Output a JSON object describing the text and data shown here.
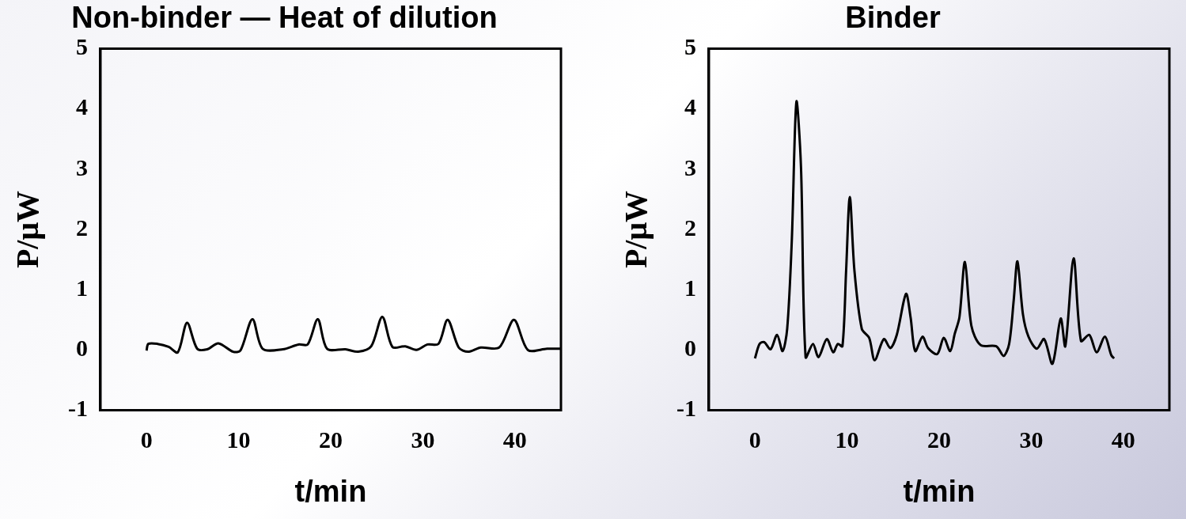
{
  "chart_data": [
    {
      "type": "line",
      "title": "Non-binder — Heat of dilution",
      "xlabel": "t/min",
      "ylabel": "P/μW",
      "color": "#000000",
      "xlim": [
        -5,
        45
      ],
      "ylim": [
        -1,
        5
      ],
      "xticks": [
        0,
        10,
        20,
        30,
        40
      ],
      "yticks": [
        -1,
        0,
        1,
        2,
        3,
        4,
        5
      ],
      "x": [
        0,
        0.2,
        1.2,
        2.4,
        3.4,
        4.4,
        5.5,
        6.6,
        7.8,
        9.4,
        10.2,
        11.5,
        12.6,
        14.8,
        16.5,
        17.5,
        18.6,
        19.6,
        21.6,
        23.0,
        24.4,
        25.6,
        26.7,
        28.1,
        29.3,
        30.5,
        31.7,
        32.7,
        33.9,
        34.9,
        36.3,
        38.3,
        39.9,
        41.4,
        43.5,
        45
      ],
      "values": [
        -0.01,
        0.1,
        0.1,
        0.05,
        -0.04,
        0.45,
        0.02,
        0.01,
        0.11,
        -0.03,
        -0.01,
        0.51,
        0.02,
        0.01,
        0.09,
        0.09,
        0.51,
        0.02,
        0.01,
        -0.03,
        0.06,
        0.55,
        0.05,
        0.06,
        0,
        0.09,
        0.1,
        0.5,
        0.04,
        -0.03,
        0.04,
        0.04,
        0.5,
        0,
        0.02,
        0.02
      ]
    },
    {
      "type": "line",
      "title": "Binder",
      "xlabel": "t/min",
      "ylabel": "P/μW",
      "color": "#000000",
      "xlim": [
        -5,
        45
      ],
      "ylim": [
        -1,
        5
      ],
      "xticks": [
        0,
        10,
        20,
        30,
        40
      ],
      "yticks": [
        -1,
        0,
        1,
        2,
        3,
        4,
        5
      ],
      "x": [
        0,
        0.5,
        1.0,
        1.7,
        2.4,
        3.0,
        3.5,
        4.0,
        4.5,
        5.0,
        5.5,
        6.3,
        6.9,
        7.8,
        8.5,
        9.0,
        9.5,
        9.9,
        10.3,
        10.8,
        11.6,
        12.4,
        13.0,
        14.0,
        14.7,
        15.4,
        16.4,
        16.9,
        17.4,
        18.2,
        18.8,
        19.8,
        20.5,
        21.2,
        21.7,
        22.2,
        22.8,
        23.5,
        24.5,
        26.2,
        27.0,
        27.6,
        28.1,
        28.5,
        29.1,
        29.7,
        30.6,
        31.4,
        32.3,
        33.2,
        33.7,
        34.6,
        35.4,
        36.3,
        37.1,
        38.0,
        38.7,
        39.0
      ],
      "values": [
        -0.14,
        0.1,
        0.13,
        0.01,
        0.25,
        -0.02,
        0.35,
        1.81,
        4.12,
        3.03,
        -0.12,
        0.1,
        -0.12,
        0.18,
        -0.04,
        0.1,
        0.06,
        1.32,
        2.54,
        1.32,
        0.35,
        0.2,
        -0.17,
        0.18,
        0.03,
        0.25,
        0.93,
        0.54,
        -0.02,
        0.22,
        0.03,
        -0.07,
        0.2,
        -0.02,
        0.27,
        0.54,
        1.46,
        0.4,
        0.08,
        0.06,
        -0.1,
        0.1,
        0.83,
        1.47,
        0.59,
        0.22,
        0.02,
        0.18,
        -0.23,
        0.52,
        0.06,
        1.52,
        0.15,
        0.25,
        -0.04,
        0.22,
        -0.09,
        -0.14
      ]
    }
  ]
}
